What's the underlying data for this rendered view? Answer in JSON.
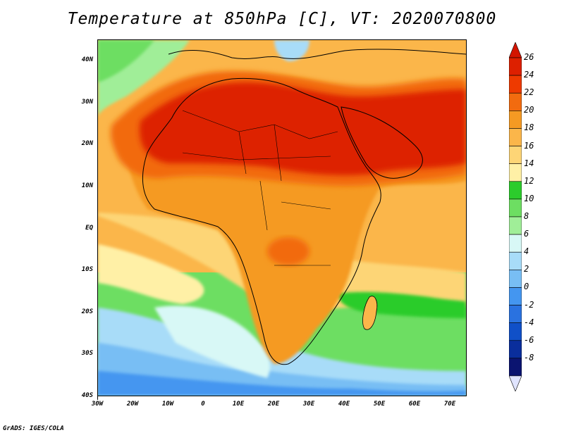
{
  "title": "Temperature at 850hPa [C], VT: 2020070800",
  "map": {
    "lon_labels": [
      "30W",
      "20W",
      "10W",
      "0",
      "10E",
      "20E",
      "30E",
      "40E",
      "50E",
      "60E",
      "70E"
    ],
    "lat_labels": [
      "40N",
      "30N",
      "20N",
      "10N",
      "EQ",
      "10S",
      "20S",
      "30S",
      "40S"
    ],
    "extent": {
      "lon": [
        -30,
        75
      ],
      "lat": [
        -40,
        45
      ]
    }
  },
  "colorbar": {
    "labels": [
      "26",
      "24",
      "22",
      "20",
      "18",
      "16",
      "14",
      "12",
      "10",
      "8",
      "6",
      "4",
      "2",
      "0",
      "-2",
      "-4",
      "-6",
      "-8"
    ],
    "colors": [
      "#dd2000",
      "#ee3a00",
      "#f26b0f",
      "#f59a23",
      "#fbb64a",
      "#fdd576",
      "#fff0a6",
      "#2ccc2c",
      "#6dde62",
      "#a0ee98",
      "#d8f8f6",
      "#a8dcf8",
      "#78bef4",
      "#4496f0",
      "#2a72e0",
      "#1050c8",
      "#0a2e9c",
      "#0b1470"
    ],
    "over_color": "#d31500",
    "under_color": "#e0e4ff"
  },
  "credit": "GrADS: IGES/COLA"
}
